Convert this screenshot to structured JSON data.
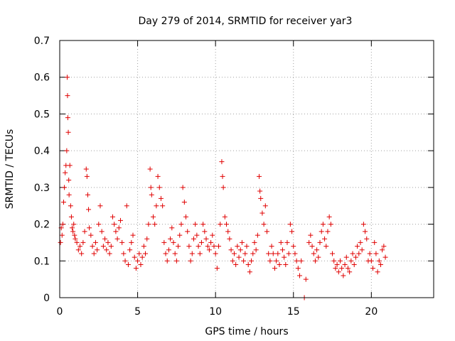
{
  "chart_data": {
    "type": "scatter",
    "title": "Day 279 of 2014, SRMTID for receiver yar3",
    "xlabel": "GPS time / hours",
    "ylabel": "SRMTID / TECUs",
    "xlim": [
      0,
      24
    ],
    "ylim": [
      0,
      0.7
    ],
    "xticks": [
      0,
      5,
      10,
      15,
      20
    ],
    "yticks": [
      0,
      0.1,
      0.2,
      0.3,
      0.4,
      0.5,
      0.6,
      0.7
    ],
    "xtick_labels": [
      "0",
      "5",
      "10",
      "15",
      "20"
    ],
    "ytick_labels": [
      "0",
      "0.1",
      "0.2",
      "0.3",
      "0.4",
      "0.5",
      "0.6",
      "0.7"
    ],
    "grid": true,
    "marker": "plus",
    "color": "#e00000",
    "series": [
      {
        "name": "SRMTID",
        "points": [
          [
            0.05,
            0.15
          ],
          [
            0.1,
            0.19
          ],
          [
            0.15,
            0.17
          ],
          [
            0.2,
            0.2
          ],
          [
            0.25,
            0.26
          ],
          [
            0.3,
            0.3
          ],
          [
            0.35,
            0.34
          ],
          [
            0.4,
            0.36
          ],
          [
            0.45,
            0.4
          ],
          [
            0.48,
            0.6
          ],
          [
            0.5,
            0.55
          ],
          [
            0.52,
            0.49
          ],
          [
            0.55,
            0.45
          ],
          [
            0.58,
            0.32
          ],
          [
            0.6,
            0.28
          ],
          [
            0.65,
            0.36
          ],
          [
            0.7,
            0.25
          ],
          [
            0.75,
            0.22
          ],
          [
            0.8,
            0.19
          ],
          [
            0.85,
            0.18
          ],
          [
            0.9,
            0.2
          ],
          [
            0.95,
            0.17
          ],
          [
            1.0,
            0.16
          ],
          [
            1.1,
            0.15
          ],
          [
            1.2,
            0.13
          ],
          [
            1.3,
            0.14
          ],
          [
            1.4,
            0.12
          ],
          [
            1.5,
            0.15
          ],
          [
            1.6,
            0.18
          ],
          [
            1.7,
            0.35
          ],
          [
            1.75,
            0.33
          ],
          [
            1.8,
            0.28
          ],
          [
            1.85,
            0.24
          ],
          [
            1.9,
            0.19
          ],
          [
            2.0,
            0.17
          ],
          [
            2.1,
            0.14
          ],
          [
            2.2,
            0.12
          ],
          [
            2.3,
            0.15
          ],
          [
            2.4,
            0.13
          ],
          [
            2.5,
            0.2
          ],
          [
            2.6,
            0.25
          ],
          [
            2.7,
            0.18
          ],
          [
            2.8,
            0.14
          ],
          [
            2.9,
            0.16
          ],
          [
            3.0,
            0.13
          ],
          [
            3.1,
            0.15
          ],
          [
            3.2,
            0.12
          ],
          [
            3.3,
            0.14
          ],
          [
            3.4,
            0.22
          ],
          [
            3.5,
            0.2
          ],
          [
            3.6,
            0.18
          ],
          [
            3.7,
            0.16
          ],
          [
            3.8,
            0.19
          ],
          [
            3.9,
            0.21
          ],
          [
            4.0,
            0.15
          ],
          [
            4.1,
            0.12
          ],
          [
            4.2,
            0.1
          ],
          [
            4.3,
            0.25
          ],
          [
            4.4,
            0.09
          ],
          [
            4.5,
            0.13
          ],
          [
            4.6,
            0.15
          ],
          [
            4.7,
            0.17
          ],
          [
            4.8,
            0.11
          ],
          [
            4.9,
            0.08
          ],
          [
            5.0,
            0.1
          ],
          [
            5.1,
            0.12
          ],
          [
            5.2,
            0.09
          ],
          [
            5.3,
            0.11
          ],
          [
            5.4,
            0.14
          ],
          [
            5.5,
            0.12
          ],
          [
            5.6,
            0.16
          ],
          [
            5.7,
            0.2
          ],
          [
            5.8,
            0.35
          ],
          [
            5.85,
            0.3
          ],
          [
            5.9,
            0.28
          ],
          [
            6.0,
            0.22
          ],
          [
            6.1,
            0.2
          ],
          [
            6.2,
            0.25
          ],
          [
            6.3,
            0.33
          ],
          [
            6.4,
            0.3
          ],
          [
            6.5,
            0.27
          ],
          [
            6.6,
            0.25
          ],
          [
            6.7,
            0.15
          ],
          [
            6.8,
            0.12
          ],
          [
            6.9,
            0.1
          ],
          [
            7.0,
            0.13
          ],
          [
            7.1,
            0.16
          ],
          [
            7.2,
            0.19
          ],
          [
            7.3,
            0.15
          ],
          [
            7.4,
            0.12
          ],
          [
            7.5,
            0.1
          ],
          [
            7.6,
            0.14
          ],
          [
            7.7,
            0.17
          ],
          [
            7.8,
            0.2
          ],
          [
            7.9,
            0.3
          ],
          [
            8.0,
            0.26
          ],
          [
            8.1,
            0.22
          ],
          [
            8.2,
            0.18
          ],
          [
            8.3,
            0.14
          ],
          [
            8.4,
            0.1
          ],
          [
            8.5,
            0.12
          ],
          [
            8.6,
            0.16
          ],
          [
            8.7,
            0.2
          ],
          [
            8.8,
            0.17
          ],
          [
            8.9,
            0.14
          ],
          [
            9.0,
            0.12
          ],
          [
            9.1,
            0.15
          ],
          [
            9.2,
            0.2
          ],
          [
            9.3,
            0.18
          ],
          [
            9.4,
            0.16
          ],
          [
            9.5,
            0.14
          ],
          [
            9.6,
            0.13
          ],
          [
            9.7,
            0.15
          ],
          [
            9.8,
            0.17
          ],
          [
            9.9,
            0.14
          ],
          [
            10.0,
            0.12
          ],
          [
            10.1,
            0.08
          ],
          [
            10.2,
            0.14
          ],
          [
            10.3,
            0.2
          ],
          [
            10.4,
            0.37
          ],
          [
            10.45,
            0.33
          ],
          [
            10.5,
            0.3
          ],
          [
            10.6,
            0.22
          ],
          [
            10.7,
            0.2
          ],
          [
            10.8,
            0.18
          ],
          [
            10.9,
            0.16
          ],
          [
            11.0,
            0.13
          ],
          [
            11.1,
            0.1
          ],
          [
            11.2,
            0.12
          ],
          [
            11.3,
            0.09
          ],
          [
            11.4,
            0.14
          ],
          [
            11.5,
            0.11
          ],
          [
            11.6,
            0.13
          ],
          [
            11.7,
            0.15
          ],
          [
            11.8,
            0.1
          ],
          [
            11.9,
            0.12
          ],
          [
            12.0,
            0.14
          ],
          [
            12.1,
            0.09
          ],
          [
            12.2,
            0.07
          ],
          [
            12.3,
            0.1
          ],
          [
            12.4,
            0.12
          ],
          [
            12.5,
            0.15
          ],
          [
            12.6,
            0.13
          ],
          [
            12.7,
            0.17
          ],
          [
            12.8,
            0.33
          ],
          [
            12.85,
            0.29
          ],
          [
            12.9,
            0.27
          ],
          [
            13.0,
            0.23
          ],
          [
            13.1,
            0.2
          ],
          [
            13.2,
            0.25
          ],
          [
            13.3,
            0.18
          ],
          [
            13.4,
            0.12
          ],
          [
            13.5,
            0.1
          ],
          [
            13.6,
            0.14
          ],
          [
            13.7,
            0.12
          ],
          [
            13.8,
            0.08
          ],
          [
            13.9,
            0.1
          ],
          [
            14.0,
            0.12
          ],
          [
            14.1,
            0.09
          ],
          [
            14.2,
            0.15
          ],
          [
            14.3,
            0.13
          ],
          [
            14.4,
            0.11
          ],
          [
            14.5,
            0.09
          ],
          [
            14.6,
            0.15
          ],
          [
            14.7,
            0.12
          ],
          [
            14.8,
            0.2
          ],
          [
            14.9,
            0.18
          ],
          [
            15.0,
            0.14
          ],
          [
            15.1,
            0.12
          ],
          [
            15.2,
            0.1
          ],
          [
            15.3,
            0.08
          ],
          [
            15.4,
            0.06
          ],
          [
            15.5,
            0.1
          ],
          [
            15.7,
            0.0
          ],
          [
            15.8,
            0.05
          ],
          [
            16.0,
            0.15
          ],
          [
            16.1,
            0.17
          ],
          [
            16.2,
            0.14
          ],
          [
            16.3,
            0.12
          ],
          [
            16.4,
            0.1
          ],
          [
            16.5,
            0.13
          ],
          [
            16.6,
            0.11
          ],
          [
            16.7,
            0.15
          ],
          [
            16.8,
            0.18
          ],
          [
            16.9,
            0.2
          ],
          [
            17.0,
            0.16
          ],
          [
            17.1,
            0.14
          ],
          [
            17.2,
            0.18
          ],
          [
            17.3,
            0.22
          ],
          [
            17.4,
            0.2
          ],
          [
            17.5,
            0.12
          ],
          [
            17.6,
            0.1
          ],
          [
            17.7,
            0.08
          ],
          [
            17.8,
            0.09
          ],
          [
            17.9,
            0.07
          ],
          [
            18.0,
            0.1
          ],
          [
            18.1,
            0.08
          ],
          [
            18.2,
            0.06
          ],
          [
            18.3,
            0.09
          ],
          [
            18.4,
            0.11
          ],
          [
            18.5,
            0.08
          ],
          [
            18.6,
            0.07
          ],
          [
            18.7,
            0.1
          ],
          [
            18.8,
            0.12
          ],
          [
            18.9,
            0.09
          ],
          [
            19.0,
            0.11
          ],
          [
            19.1,
            0.14
          ],
          [
            19.2,
            0.12
          ],
          [
            19.3,
            0.15
          ],
          [
            19.4,
            0.13
          ],
          [
            19.5,
            0.2
          ],
          [
            19.6,
            0.18
          ],
          [
            19.7,
            0.16
          ],
          [
            19.8,
            0.1
          ],
          [
            19.9,
            0.12
          ],
          [
            20.0,
            0.1
          ],
          [
            20.1,
            0.08
          ],
          [
            20.2,
            0.15
          ],
          [
            20.3,
            0.12
          ],
          [
            20.4,
            0.07
          ],
          [
            20.5,
            0.1
          ],
          [
            20.6,
            0.09
          ],
          [
            20.7,
            0.13
          ],
          [
            20.8,
            0.14
          ],
          [
            20.9,
            0.11
          ]
        ]
      }
    ]
  }
}
